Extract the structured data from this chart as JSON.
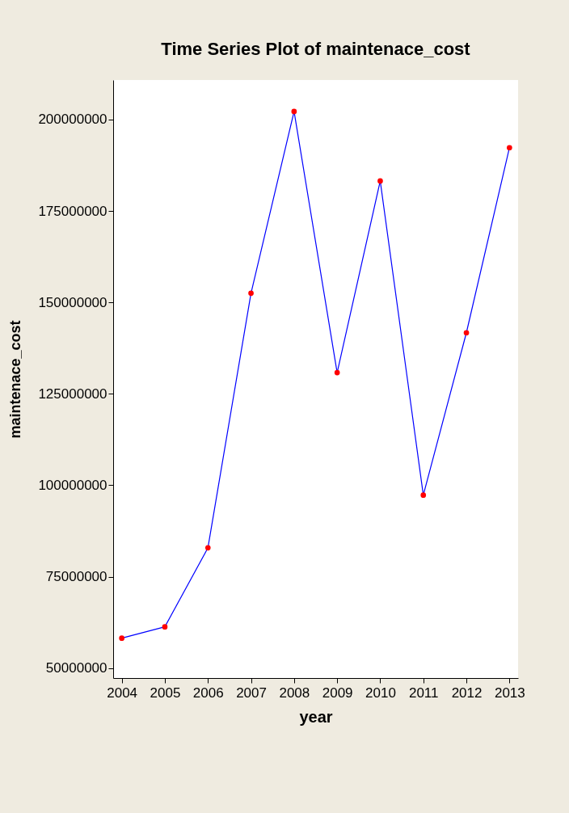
{
  "chart_data": {
    "type": "line",
    "title": "Time Series Plot of maintenace_cost",
    "xlabel": "year",
    "ylabel": "maintenace_cost",
    "x": [
      2004,
      2005,
      2006,
      2007,
      2008,
      2009,
      2010,
      2011,
      2012,
      2013
    ],
    "series": [
      {
        "color": "#0000ff",
        "values": [
          58200000,
          61300000,
          82900000,
          152500000,
          202200000,
          130800000,
          183200000,
          97300000,
          141700000,
          192300000
        ]
      },
      {
        "type": "scatter",
        "marker": "circle",
        "color": "#ff0000",
        "values": [
          58200000,
          61300000,
          82900000,
          152500000,
          202200000,
          130800000,
          183200000,
          97300000,
          141700000,
          192300000
        ]
      }
    ],
    "grid": false,
    "xlim": [
      2003.8,
      2013.2
    ],
    "xticks": [
      2004,
      2005,
      2006,
      2007,
      2008,
      2009,
      2010,
      2011,
      2012,
      2013
    ],
    "ylim": [
      47300000,
      210800000
    ],
    "yticks": [
      50000000,
      75000000,
      100000000,
      125000000,
      150000000,
      175000000,
      200000000
    ]
  }
}
